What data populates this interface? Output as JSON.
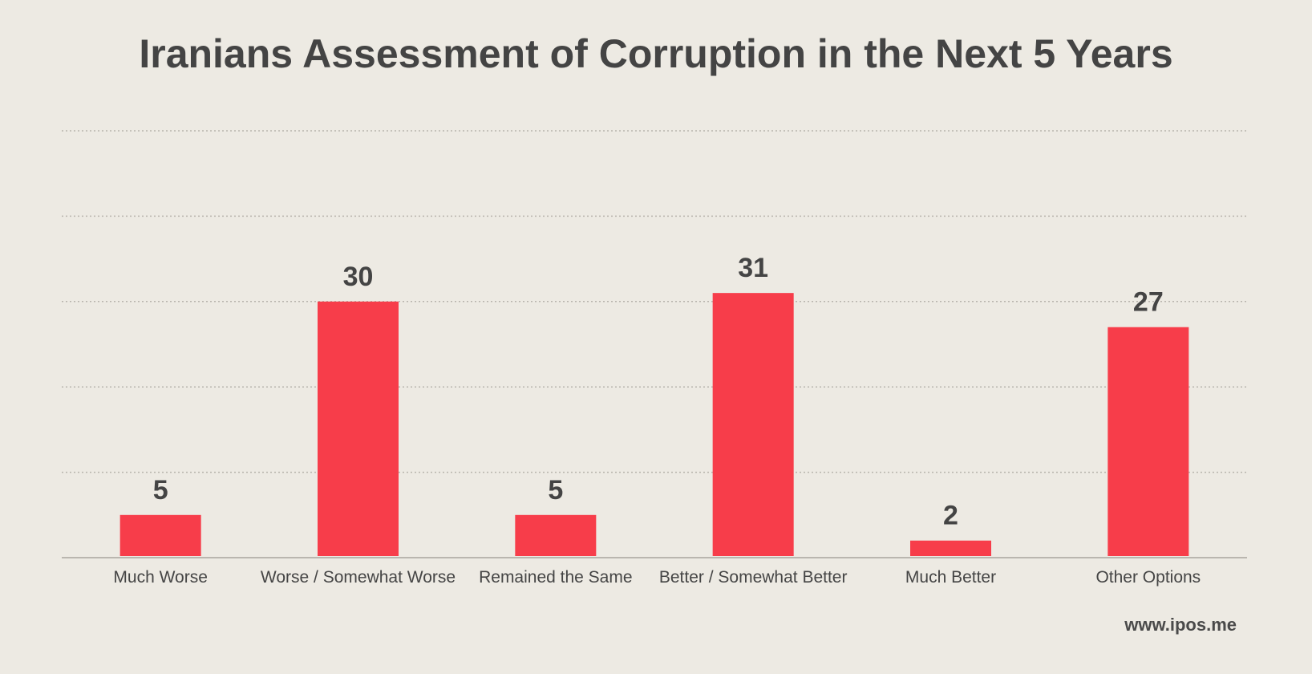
{
  "colors": {
    "bar": "#f73d4a",
    "text": "#444444",
    "grid": "#b8b4ad",
    "axis": "#a9a59e",
    "background": "#edeae3"
  },
  "source": "www.ipos.me",
  "chart_data": {
    "type": "bar",
    "title": "Iranians Assessment of Corruption in the Next 5 Years",
    "xlabel": "",
    "ylabel": "",
    "categories": [
      "Much Worse",
      "Worse / Somewhat Worse",
      "Remained the Same",
      "Better / Somewhat Better",
      "Much Better",
      "Other Options"
    ],
    "values": [
      5,
      30,
      5,
      31,
      2,
      27
    ],
    "ylim": [
      0,
      50
    ],
    "grid": true,
    "grid_step": 10,
    "data_labels": true
  }
}
